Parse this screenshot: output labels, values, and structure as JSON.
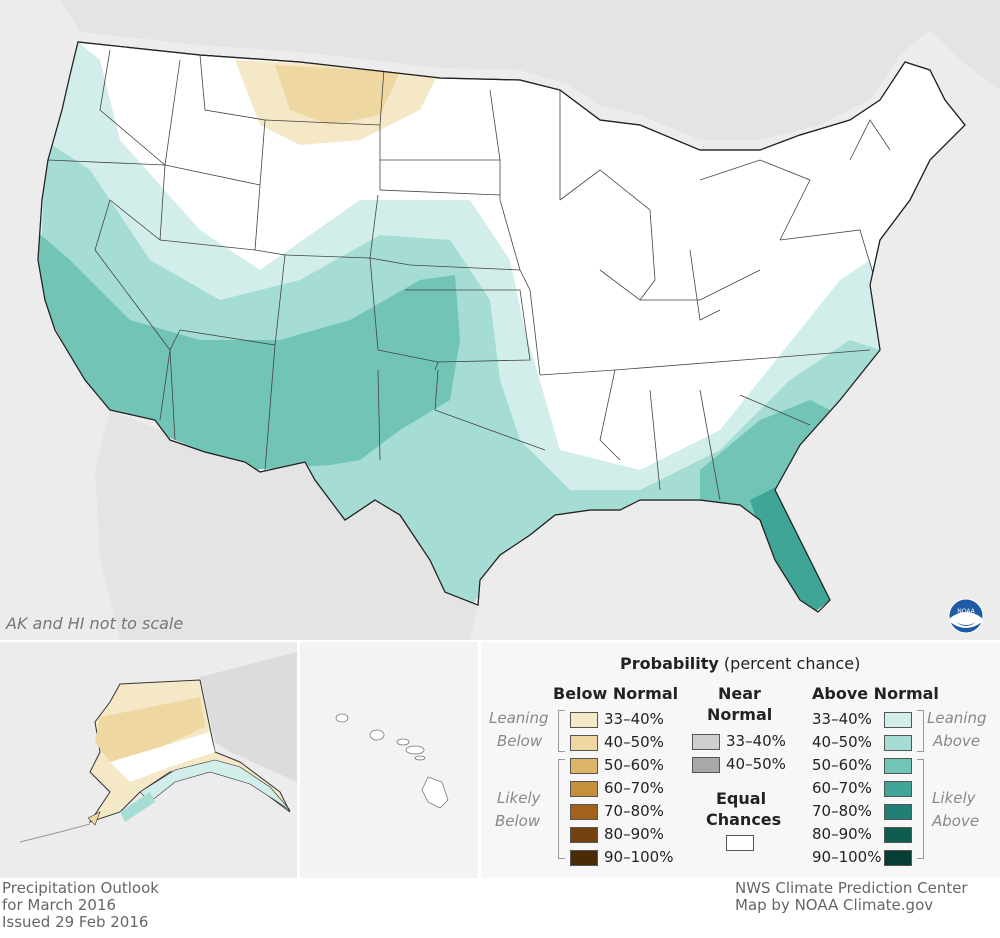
{
  "map": {
    "scale_note": "AK and HI not to scale"
  },
  "legend": {
    "title_bold": "Probability",
    "title_rest": " (percent chance)",
    "below_normal": {
      "heading": "Below Normal",
      "items": [
        {
          "label": "33–40%",
          "color": "#f5e8c6"
        },
        {
          "label": "40–50%",
          "color": "#eed7a0"
        },
        {
          "label": "50–60%",
          "color": "#ddb56a"
        },
        {
          "label": "60–70%",
          "color": "#c68f3c"
        },
        {
          "label": "70–80%",
          "color": "#a0621c"
        },
        {
          "label": "80–90%",
          "color": "#74420f"
        },
        {
          "label": "90–100%",
          "color": "#4a2b08"
        }
      ]
    },
    "near_normal": {
      "heading_line1": "Near",
      "heading_line2": "Normal",
      "items": [
        {
          "label": "33–40%",
          "color": "#cfcfcf"
        },
        {
          "label": "40–50%",
          "color": "#a8a8a8"
        }
      ]
    },
    "equal_chances": {
      "line1": "Equal",
      "line2": "Chances",
      "color": "#ffffff"
    },
    "above_normal": {
      "heading": "Above Normal",
      "items": [
        {
          "label": "33–40%",
          "color": "#d2eeea"
        },
        {
          "label": "40–50%",
          "color": "#a5dcd3"
        },
        {
          "label": "50–60%",
          "color": "#72c4b7"
        },
        {
          "label": "60–70%",
          "color": "#3ea597"
        },
        {
          "label": "70–80%",
          "color": "#1f7f72"
        },
        {
          "label": "80–90%",
          "color": "#0f5d51"
        },
        {
          "label": "90–100%",
          "color": "#063d35"
        }
      ]
    },
    "side_labels": {
      "leaning_below_1": "Leaning",
      "leaning_below_2": "Below",
      "likely_below_1": "Likely",
      "likely_below_2": "Below",
      "leaning_above_1": "Leaning",
      "leaning_above_2": "Above",
      "likely_above_1": "Likely",
      "likely_above_2": "Above"
    }
  },
  "footer": {
    "left_line1": "Precipitation Outlook",
    "left_line2": "for March 2016",
    "left_line3": "Issued 29 Feb 2016",
    "right_line1": "NWS Climate Prediction Center",
    "right_line2": "Map by NOAA Climate.gov"
  },
  "logo": {
    "text": "NOAA"
  }
}
